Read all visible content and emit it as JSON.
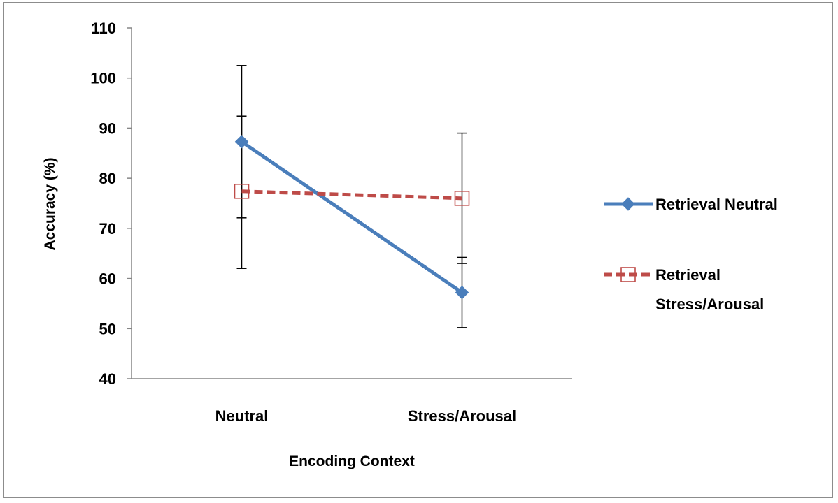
{
  "chart_data": {
    "type": "line",
    "xlabel": "Encoding Context",
    "ylabel": "Accuracy  (%)",
    "categories": [
      "Neutral",
      "Stress/Arousal"
    ],
    "ylim": [
      40,
      110
    ],
    "yticks": [
      40,
      50,
      60,
      70,
      80,
      90,
      100,
      110
    ],
    "grid": false,
    "legend_position": "right",
    "series": [
      {
        "name": "Retrieval Neutral",
        "legend_lines": [
          "Retrieval Neutral"
        ],
        "values": [
          87.3,
          57.2
        ],
        "error_low": [
          62.0,
          50.2
        ],
        "error_high": [
          102.5,
          64.2
        ],
        "color": "#4a7ebb",
        "line_style": "solid",
        "marker": "diamond-filled"
      },
      {
        "name": "Retrieval Stress/Arousal",
        "legend_lines": [
          "Retrieval",
          "Stress/Arousal"
        ],
        "values": [
          77.4,
          76.0
        ],
        "error_low": [
          72.1,
          63.0
        ],
        "error_high": [
          92.4,
          89.0
        ],
        "color": "#be4b48",
        "line_style": "dashed",
        "marker": "square-open"
      }
    ]
  }
}
